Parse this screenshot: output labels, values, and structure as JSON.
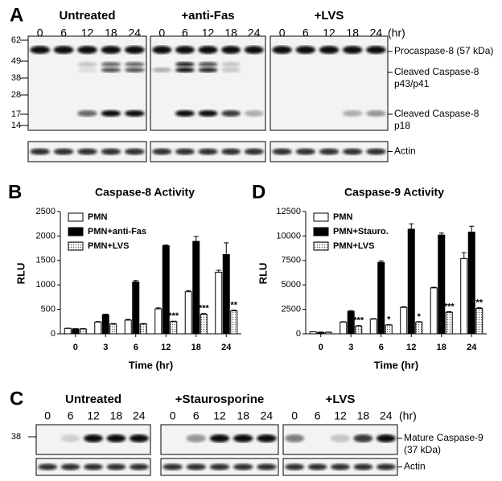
{
  "panel_a": {
    "letter": "A",
    "groups": [
      "Untreated",
      "+anti-Fas",
      "+LVS"
    ],
    "times": [
      "0",
      "6",
      "12",
      "18",
      "24"
    ],
    "unit": "(hr)",
    "markers": [
      "62",
      "49",
      "38",
      "28",
      "17",
      "14"
    ],
    "band_labels": [
      [
        "Procaspase-8 (57 kDa)"
      ],
      [
        "Cleaved Caspase-8",
        "p43/p41"
      ],
      [
        "Cleaved Caspase-8",
        "p18"
      ]
    ],
    "loading_label": "Actin"
  },
  "panel_c": {
    "letter": "C",
    "groups": [
      "Untreated",
      "+Staurosporine",
      "+LVS"
    ],
    "times": [
      "0",
      "6",
      "12",
      "18",
      "24"
    ],
    "unit": "(hr)",
    "markers": [
      "38"
    ],
    "band_labels": [
      [
        "Mature Caspase-9",
        "(37 kDa)"
      ]
    ],
    "loading_label": "Actin"
  },
  "chart_data": [
    {
      "type": "bar",
      "letter": "B",
      "title": "Caspase-8 Activity",
      "x_label": "Time (hr)",
      "y_label": "RLU",
      "categories": [
        "0",
        "3",
        "6",
        "12",
        "18",
        "24"
      ],
      "ylim": [
        0,
        2500
      ],
      "yticks": [
        0,
        500,
        1000,
        1500,
        2000,
        2500
      ],
      "legend": "upper left",
      "series": [
        {
          "name": "PMN",
          "color": "#ffffff",
          "values": [
            110,
            240,
            280,
            510,
            860,
            1260
          ],
          "errors": [
            5,
            10,
            15,
            20,
            25,
            40
          ]
        },
        {
          "name": "PMN+anti-Fas",
          "color": "#000000",
          "values": [
            100,
            390,
            1060,
            1800,
            1890,
            1620
          ],
          "errors": [
            5,
            10,
            30,
            15,
            100,
            240
          ]
        },
        {
          "name": "PMN+LVS",
          "color": "#ffffff",
          "pattern": "dotted",
          "values": [
            100,
            200,
            200,
            250,
            400,
            470
          ],
          "errors": [
            5,
            10,
            10,
            10,
            15,
            15
          ],
          "annotations": [
            null,
            null,
            null,
            "***",
            "***",
            "**"
          ]
        }
      ]
    },
    {
      "type": "bar",
      "letter": "D",
      "title": "Caspase-9 Activity",
      "x_label": "Time (hr)",
      "y_label": "RLU",
      "categories": [
        "0",
        "3",
        "6",
        "12",
        "18",
        "24"
      ],
      "ylim": [
        0,
        12500
      ],
      "yticks": [
        0,
        2500,
        5000,
        7500,
        10000,
        12500
      ],
      "legend": "upper left",
      "series": [
        {
          "name": "PMN",
          "color": "#ffffff",
          "values": [
            200,
            1200,
            1500,
            2700,
            4700,
            7700
          ],
          "errors": [
            20,
            40,
            50,
            80,
            60,
            600
          ]
        },
        {
          "name": "PMN+Stauro.",
          "color": "#000000",
          "values": [
            150,
            2300,
            7300,
            10700,
            10100,
            10400
          ],
          "errors": [
            20,
            60,
            150,
            550,
            200,
            600
          ]
        },
        {
          "name": "PMN+LVS",
          "color": "#ffffff",
          "pattern": "dotted",
          "values": [
            150,
            800,
            900,
            1200,
            2200,
            2600
          ],
          "errors": [
            20,
            40,
            40,
            40,
            60,
            60
          ],
          "annotations": [
            null,
            "***",
            "*",
            "*",
            "***",
            "**"
          ]
        }
      ]
    }
  ]
}
